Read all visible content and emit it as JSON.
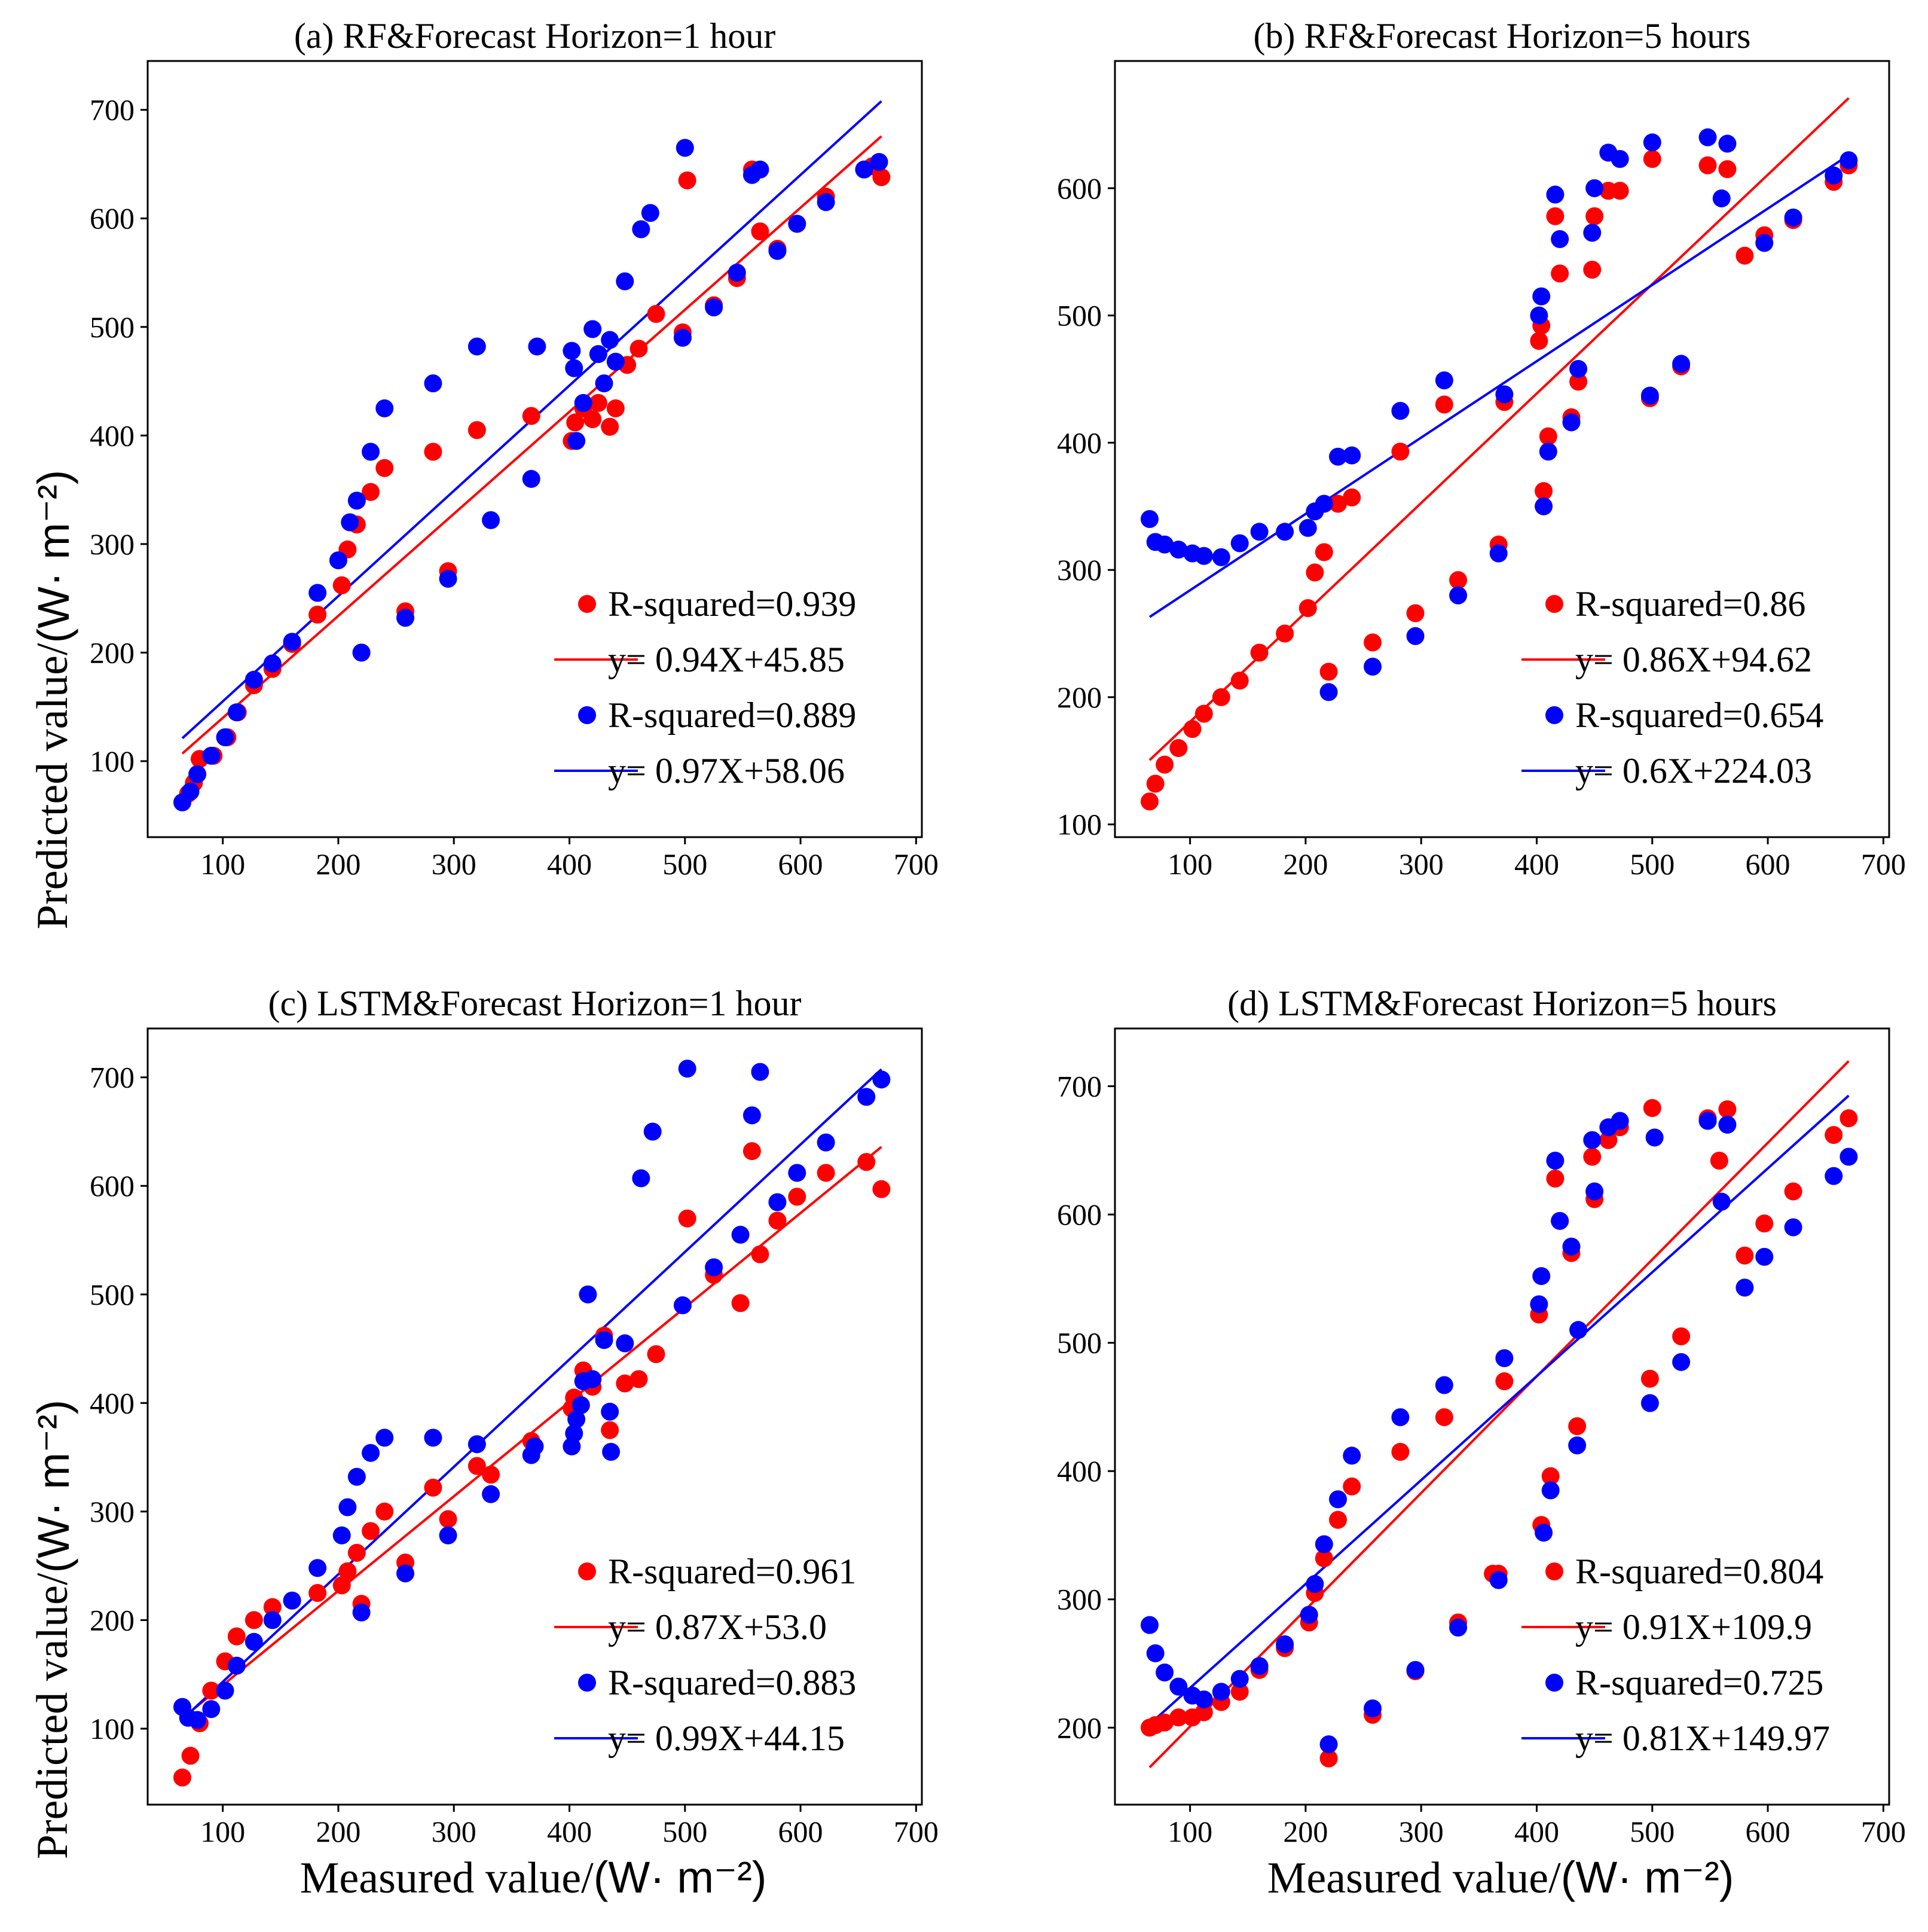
{
  "colors": {
    "red": "#ff0000",
    "blue": "#0000ff",
    "axis": "#000000"
  },
  "figure": {
    "ylabel": "Predicted value/",
    "ylabel_unit": "(W· m⁻²)",
    "xlabel": "Measured value/",
    "xlabel_unit": "(W· m⁻²)"
  },
  "chart_data": [
    {
      "type": "scatter",
      "title": "(a) RF&Forecast Horizon=1 hour",
      "xlim": [
        35,
        705
      ],
      "ylim": [
        30,
        745
      ],
      "xticks": [
        100,
        200,
        300,
        400,
        500,
        600,
        700
      ],
      "yticks": [
        100,
        200,
        300,
        400,
        500,
        600,
        700
      ],
      "series": [
        {
          "name": "red",
          "x": [
            70,
            75,
            80,
            92,
            104,
            113,
            127,
            143,
            160,
            182,
            203,
            208,
            216,
            220,
            228,
            240,
            258,
            282,
            295,
            320,
            367,
            402,
            405,
            412,
            420,
            425,
            435,
            440,
            450,
            460,
            475,
            498,
            502,
            525,
            545,
            558,
            565,
            580,
            597,
            622,
            662,
            670
          ],
          "y": [
            70,
            80,
            102,
            105,
            122,
            145,
            170,
            185,
            208,
            235,
            262,
            295,
            318,
            200,
            348,
            370,
            238,
            385,
            275,
            405,
            418,
            395,
            412,
            425,
            415,
            430,
            408,
            425,
            465,
            480,
            512,
            495,
            635,
            520,
            545,
            645,
            588,
            572,
            595,
            620,
            648,
            638
          ],
          "r2_label": "R-squared=0.939",
          "fit": {
            "slope": 0.94,
            "intercept": 45.85,
            "x_range": [
              65,
              670
            ],
            "label": "y= 0.94X+45.85"
          }
        },
        {
          "name": "blue",
          "x": [
            65,
            72,
            78,
            90,
            102,
            112,
            127,
            143,
            160,
            182,
            200,
            210,
            216,
            220,
            228,
            240,
            258,
            282,
            295,
            320,
            332,
            367,
            372,
            402,
            404,
            406,
            412,
            420,
            425,
            430,
            435,
            440,
            448,
            462,
            470,
            498,
            500,
            525,
            545,
            558,
            565,
            580,
            597,
            622,
            655,
            668
          ],
          "y": [
            62,
            72,
            88,
            105,
            122,
            145,
            175,
            190,
            210,
            255,
            285,
            320,
            340,
            200,
            385,
            425,
            232,
            448,
            268,
            482,
            322,
            360,
            482,
            478,
            462,
            395,
            430,
            498,
            475,
            448,
            488,
            468,
            542,
            590,
            605,
            490,
            665,
            518,
            550,
            640,
            645,
            570,
            595,
            615,
            645,
            652
          ],
          "r2_label": "R-squared=0.889",
          "fit": {
            "slope": 0.97,
            "intercept": 58.06,
            "x_range": [
              65,
              670
            ],
            "label": "y= 0.97X+58.06"
          }
        }
      ]
    },
    {
      "type": "scatter",
      "title": "(b) RF&Forecast Horizon=5 hours",
      "xlim": [
        35,
        705
      ],
      "ylim": [
        90,
        700
      ],
      "xticks": [
        100,
        200,
        300,
        400,
        500,
        600,
        700
      ],
      "yticks": [
        100,
        200,
        300,
        400,
        500,
        600
      ],
      "series": [
        {
          "name": "red",
          "x": [
            65,
            70,
            78,
            90,
            102,
            112,
            127,
            143,
            160,
            182,
            202,
            208,
            216,
            220,
            228,
            240,
            258,
            282,
            295,
            320,
            332,
            367,
            372,
            402,
            404,
            406,
            410,
            416,
            420,
            430,
            436,
            448,
            450,
            462,
            472,
            498,
            500,
            525,
            548,
            565,
            580,
            597,
            622,
            657,
            670
          ],
          "y": [
            118,
            132,
            147,
            160,
            175,
            187,
            200,
            213,
            235,
            250,
            270,
            298,
            314,
            220,
            352,
            357,
            243,
            393,
            266,
            430,
            292,
            320,
            432,
            480,
            492,
            362,
            405,
            578,
            533,
            420,
            448,
            536,
            578,
            598,
            598,
            435,
            623,
            460,
            618,
            615,
            547,
            563,
            575,
            605,
            618
          ],
          "r2_label": "R-squared=0.86",
          "fit": {
            "slope": 0.86,
            "intercept": 94.62,
            "x_range": [
              65,
              670
            ],
            "label": "y= 0.86X+94.62"
          }
        },
        {
          "name": "blue",
          "x": [
            65,
            70,
            78,
            90,
            102,
            112,
            127,
            143,
            160,
            182,
            202,
            208,
            216,
            220,
            228,
            240,
            258,
            282,
            295,
            320,
            332,
            367,
            372,
            402,
            404,
            406,
            410,
            416,
            420,
            430,
            436,
            448,
            450,
            462,
            472,
            498,
            500,
            525,
            548,
            560,
            565,
            597,
            622,
            657,
            670
          ],
          "y": [
            340,
            322,
            320,
            316,
            313,
            311,
            310,
            321,
            330,
            330,
            333,
            346,
            352,
            204,
            389,
            390,
            224,
            425,
            248,
            449,
            280,
            313,
            438,
            500,
            515,
            350,
            393,
            595,
            560,
            416,
            458,
            565,
            600,
            628,
            623,
            437,
            636,
            462,
            640,
            592,
            635,
            557,
            577,
            610,
            622
          ],
          "r2_label": "R-squared=0.654",
          "fit": {
            "slope": 0.6,
            "intercept": 224.03,
            "x_range": [
              65,
              670
            ],
            "label": "y= 0.6X+224.03"
          }
        }
      ]
    },
    {
      "type": "scatter",
      "title": "(c) LSTM&Forecast Horizon=1 hour",
      "xlim": [
        35,
        705
      ],
      "ylim": [
        30,
        745
      ],
      "xticks": [
        100,
        200,
        300,
        400,
        500,
        600,
        700
      ],
      "yticks": [
        100,
        200,
        300,
        400,
        500,
        600,
        700
      ],
      "series": [
        {
          "name": "red",
          "x": [
            65,
            72,
            80,
            90,
            102,
            112,
            127,
            143,
            160,
            182,
            203,
            208,
            216,
            220,
            228,
            240,
            258,
            282,
            295,
            320,
            332,
            367,
            402,
            404,
            412,
            420,
            430,
            435,
            448,
            460,
            475,
            502,
            525,
            548,
            558,
            565,
            580,
            597,
            622,
            657,
            670
          ],
          "y": [
            55,
            75,
            105,
            135,
            162,
            185,
            200,
            212,
            218,
            225,
            232,
            245,
            262,
            215,
            282,
            300,
            253,
            322,
            293,
            342,
            334,
            365,
            395,
            405,
            430,
            415,
            462,
            375,
            418,
            422,
            445,
            570,
            518,
            492,
            632,
            537,
            568,
            590,
            612,
            622,
            597
          ],
          "r2_label": "R-squared=0.961",
          "fit": {
            "slope": 0.87,
            "intercept": 53.0,
            "x_range": [
              65,
              670
            ],
            "label": "y= 0.87X+53.0"
          }
        },
        {
          "name": "blue",
          "x": [
            65,
            70,
            78,
            90,
            102,
            112,
            127,
            143,
            160,
            182,
            203,
            208,
            216,
            220,
            228,
            240,
            258,
            282,
            295,
            320,
            332,
            367,
            370,
            402,
            404,
            406,
            410,
            412,
            416,
            420,
            430,
            435,
            436,
            448,
            462,
            472,
            498,
            502,
            525,
            548,
            558,
            565,
            580,
            597,
            622,
            657,
            670
          ],
          "y": [
            120,
            110,
            108,
            118,
            135,
            158,
            180,
            200,
            218,
            248,
            278,
            304,
            332,
            207,
            354,
            368,
            243,
            368,
            278,
            362,
            316,
            352,
            360,
            360,
            372,
            385,
            398,
            420,
            500,
            422,
            458,
            392,
            355,
            455,
            607,
            650,
            490,
            708,
            525,
            555,
            665,
            705,
            585,
            612,
            640,
            682,
            698
          ],
          "r2_label": "R-squared=0.883",
          "fit": {
            "slope": 0.99,
            "intercept": 44.15,
            "x_range": [
              65,
              670
            ],
            "label": "y= 0.99X+44.15"
          }
        }
      ]
    },
    {
      "type": "scatter",
      "title": "(d) LSTM&Forecast Horizon=5 hours",
      "xlim": [
        35,
        705
      ],
      "ylim": [
        140,
        745
      ],
      "xticks": [
        100,
        200,
        300,
        400,
        500,
        600,
        700
      ],
      "yticks": [
        200,
        300,
        400,
        500,
        600,
        700
      ],
      "series": [
        {
          "name": "red",
          "x": [
            65,
            70,
            78,
            90,
            102,
            112,
            127,
            143,
            160,
            182,
            203,
            208,
            216,
            220,
            228,
            240,
            258,
            282,
            295,
            320,
            332,
            362,
            367,
            372,
            402,
            404,
            412,
            416,
            420,
            430,
            435,
            448,
            450,
            462,
            472,
            498,
            500,
            525,
            548,
            558,
            565,
            580,
            597,
            622,
            657,
            670
          ],
          "y": [
            200,
            202,
            204,
            208,
            208,
            212,
            220,
            228,
            245,
            262,
            282,
            305,
            332,
            176,
            362,
            388,
            210,
            415,
            244,
            442,
            282,
            320,
            320,
            470,
            522,
            358,
            396,
            628,
            595,
            570,
            435,
            645,
            612,
            658,
            668,
            472,
            683,
            505,
            675,
            642,
            682,
            568,
            593,
            618,
            662,
            675
          ],
          "r2_label": "R-squared=0.804",
          "fit": {
            "slope": 0.91,
            "intercept": 109.9,
            "x_range": [
              65,
              670
            ],
            "label": "y= 0.91X+109.9"
          }
        },
        {
          "name": "blue",
          "x": [
            65,
            70,
            78,
            90,
            102,
            112,
            127,
            143,
            160,
            182,
            203,
            208,
            216,
            220,
            228,
            240,
            258,
            282,
            295,
            320,
            332,
            367,
            372,
            402,
            404,
            406,
            412,
            416,
            420,
            430,
            435,
            436,
            448,
            450,
            462,
            472,
            498,
            502,
            525,
            548,
            560,
            565,
            580,
            597,
            622,
            657,
            670
          ],
          "y": [
            280,
            258,
            243,
            232,
            225,
            222,
            228,
            238,
            248,
            265,
            288,
            312,
            343,
            187,
            378,
            412,
            215,
            442,
            245,
            467,
            278,
            315,
            488,
            530,
            552,
            352,
            385,
            642,
            595,
            575,
            420,
            510,
            658,
            618,
            668,
            673,
            453,
            660,
            485,
            673,
            610,
            670,
            543,
            567,
            590,
            630,
            645
          ],
          "r2_label": "R-squared=0.725",
          "fit": {
            "slope": 0.81,
            "intercept": 149.97,
            "x_range": [
              65,
              670
            ],
            "label": "y= 0.81X+149.97"
          }
        }
      ]
    }
  ]
}
